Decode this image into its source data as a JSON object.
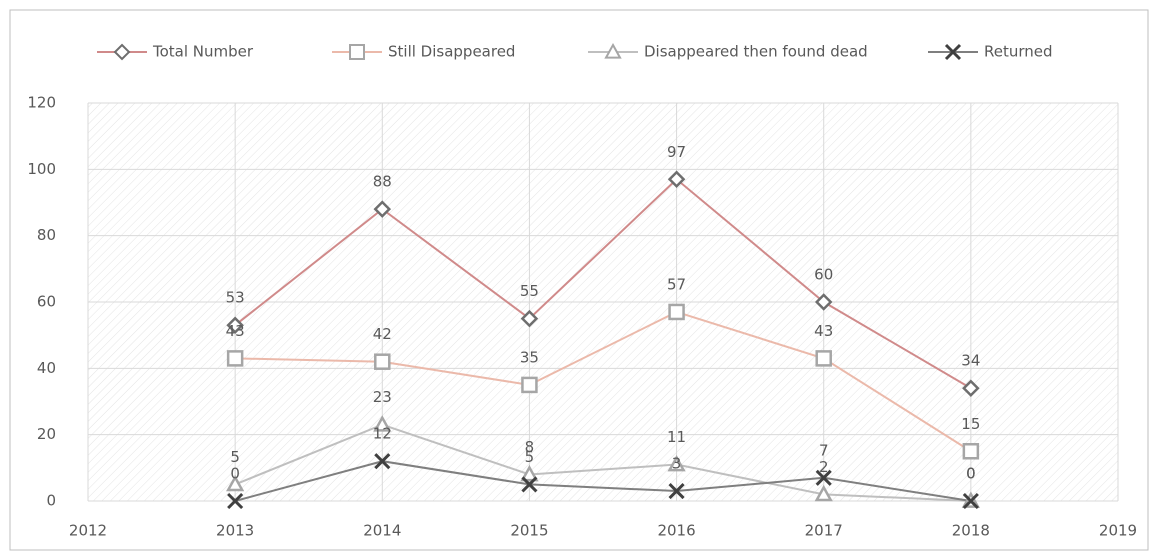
{
  "chart_data": {
    "type": "line",
    "x": [
      2013,
      2014,
      2015,
      2016,
      2017,
      2018
    ],
    "xlim": [
      2012,
      2019
    ],
    "xticks": [
      2012,
      2013,
      2014,
      2015,
      2016,
      2017,
      2018,
      2019
    ],
    "ylim": [
      0,
      120
    ],
    "yticks": [
      0,
      20,
      40,
      60,
      80,
      100,
      120
    ],
    "grid": true,
    "legend": "top",
    "series": [
      {
        "name": "Total Number",
        "color": "#d08a8a",
        "marker_color": "#6e6e6e",
        "marker": "diamond",
        "values": [
          53,
          88,
          55,
          97,
          60,
          34
        ]
      },
      {
        "name": "Still Disappeared",
        "color": "#ebb9aa",
        "marker_color": "#a6a6a6",
        "marker": "square",
        "values": [
          43,
          42,
          35,
          57,
          43,
          15
        ]
      },
      {
        "name": "Disappeared then found dead",
        "color": "#bfbfbf",
        "marker_color": "#a6a6a6",
        "marker": "triangle",
        "values": [
          5,
          23,
          8,
          11,
          2,
          0
        ]
      },
      {
        "name": "Returned",
        "color": "#7f7f7f",
        "marker_color": "#404040",
        "marker": "x",
        "values": [
          0,
          12,
          5,
          3,
          7,
          0
        ]
      }
    ]
  }
}
